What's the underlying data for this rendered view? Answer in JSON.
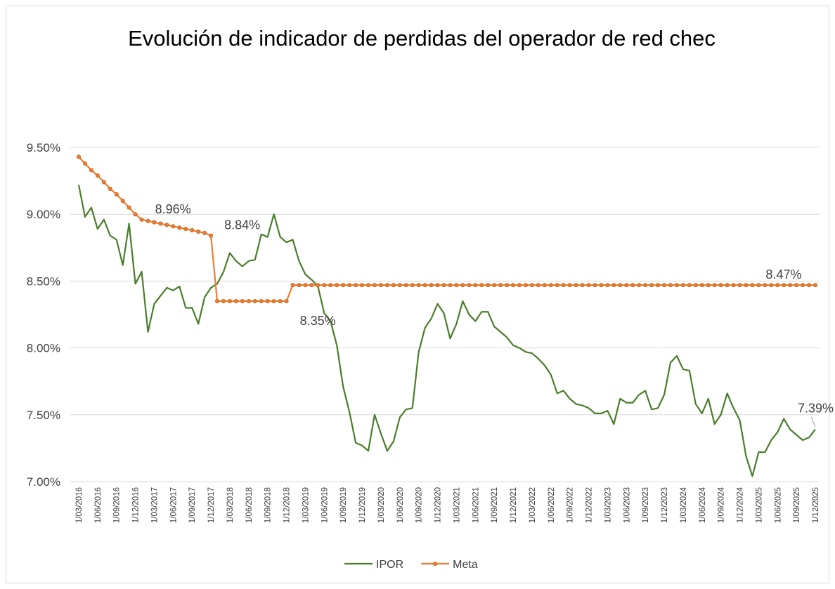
{
  "chart_data": {
    "type": "line",
    "title": "Evolución de indicador de perdidas del operador de red chec",
    "categories": [
      "1/03/2016",
      null,
      null,
      "1/06/2016",
      null,
      null,
      "1/09/2016",
      null,
      null,
      "1/12/2016",
      null,
      null,
      "1/03/2017",
      null,
      null,
      "1/06/2017",
      null,
      null,
      "1/09/2017",
      null,
      null,
      "1/12/2017",
      null,
      null,
      "1/03/2018",
      null,
      null,
      "1/06/2018",
      null,
      null,
      "1/09/2018",
      null,
      null,
      "1/12/2018",
      null,
      null,
      "1/03/2019",
      null,
      null,
      "1/06/2019",
      null,
      null,
      "1/09/2019",
      null,
      null,
      "1/12/2019",
      null,
      null,
      "1/03/2020",
      null,
      null,
      "1/06/2020",
      null,
      null,
      "1/09/2020",
      null,
      null,
      "1/12/2020",
      null,
      null,
      "1/03/2021",
      null,
      null,
      "1/06/2021",
      null,
      null,
      "1/09/2021",
      null,
      null,
      "1/12/2021",
      null,
      null,
      "1/03/2022",
      null,
      null,
      "1/06/2022",
      null,
      null,
      "1/09/2022",
      null,
      null,
      "1/12/2022",
      null,
      null,
      "1/03/2023",
      null,
      null,
      "1/06/2023",
      null,
      null,
      "1/09/2023",
      null,
      null,
      "1/12/2023",
      null,
      null,
      "1/03/2024",
      null,
      null,
      "1/06/2024",
      null,
      null,
      "1/09/2024",
      null,
      null,
      "1/12/2024",
      null,
      null,
      "1/03/2025",
      null,
      null,
      "1/06/2025",
      null,
      null,
      "1/09/2025",
      null,
      null,
      "1/12/2025"
    ],
    "series": [
      {
        "name": "IPOR",
        "color": "#4a7d2a",
        "markers": false,
        "values": [
          9.22,
          8.98,
          9.05,
          8.89,
          8.96,
          8.84,
          8.81,
          8.62,
          8.93,
          8.48,
          8.57,
          8.12,
          8.33,
          8.39,
          8.45,
          8.43,
          8.46,
          8.3,
          8.3,
          8.18,
          8.38,
          8.45,
          8.48,
          8.57,
          8.71,
          8.65,
          8.61,
          8.65,
          8.66,
          8.85,
          8.83,
          9.0,
          8.83,
          8.79,
          8.81,
          8.65,
          8.55,
          8.51,
          8.46,
          8.26,
          8.2,
          8.02,
          7.71,
          7.52,
          7.29,
          7.27,
          7.23,
          7.5,
          7.36,
          7.23,
          7.3,
          7.48,
          7.54,
          7.55,
          7.97,
          8.15,
          8.22,
          8.33,
          8.26,
          8.07,
          8.18,
          8.35,
          8.25,
          8.2,
          8.27,
          8.27,
          8.16,
          8.12,
          8.08,
          8.02,
          8.0,
          7.97,
          7.96,
          7.92,
          7.87,
          7.8,
          7.66,
          7.68,
          7.62,
          7.58,
          7.57,
          7.55,
          7.51,
          7.51,
          7.53,
          7.43,
          7.62,
          7.59,
          7.59,
          7.65,
          7.68,
          7.54,
          7.55,
          7.65,
          7.89,
          7.94,
          7.84,
          7.83,
          7.58,
          7.51,
          7.62,
          7.43,
          7.5,
          7.66,
          7.55,
          7.46,
          7.19,
          7.04,
          7.22,
          7.22,
          7.31,
          7.37,
          7.47,
          7.39,
          7.35,
          7.31,
          7.33,
          7.39
        ],
        "value_labels": [
          null,
          null,
          null,
          null,
          null,
          null,
          null,
          null,
          null,
          null,
          null,
          null,
          null,
          null,
          null,
          null,
          null,
          null,
          null,
          null,
          null,
          null,
          null,
          null,
          null,
          null,
          null,
          null,
          null,
          null,
          null,
          null,
          null,
          null,
          null,
          null,
          null,
          null,
          null,
          null,
          null,
          null,
          null,
          null,
          null,
          null,
          null,
          null,
          null,
          null,
          null,
          null,
          null,
          null,
          null,
          null,
          null,
          null,
          null,
          null,
          null,
          null,
          null,
          null,
          null,
          null,
          null,
          null,
          null,
          null,
          null,
          null,
          null,
          null,
          null,
          null,
          null,
          null,
          null,
          null,
          null,
          null,
          null,
          null,
          null,
          null,
          null,
          null,
          null,
          null,
          null,
          null,
          null,
          null,
          null,
          null,
          null,
          null,
          null,
          null,
          null,
          null,
          null,
          null,
          null,
          null,
          null,
          null,
          null,
          null,
          null,
          null,
          null,
          null,
          null,
          null,
          null,
          "7.39%"
        ]
      },
      {
        "name": "Meta",
        "color": "#ed7d31",
        "markers": true,
        "values": [
          9.43,
          9.38,
          9.33,
          9.29,
          9.24,
          9.19,
          9.15,
          9.1,
          9.05,
          9.0,
          8.96,
          8.95,
          8.94,
          8.93,
          8.92,
          8.91,
          8.9,
          8.89,
          8.88,
          8.87,
          8.86,
          8.84,
          8.35,
          8.35,
          8.35,
          8.35,
          8.35,
          8.35,
          8.35,
          8.35,
          8.35,
          8.35,
          8.35,
          8.35,
          8.47,
          8.47,
          8.47,
          8.47,
          8.47,
          8.47,
          8.47,
          8.47,
          8.47,
          8.47,
          8.47,
          8.47,
          8.47,
          8.47,
          8.47,
          8.47,
          8.47,
          8.47,
          8.47,
          8.47,
          8.47,
          8.47,
          8.47,
          8.47,
          8.47,
          8.47,
          8.47,
          8.47,
          8.47,
          8.47,
          8.47,
          8.47,
          8.47,
          8.47,
          8.47,
          8.47,
          8.47,
          8.47,
          8.47,
          8.47,
          8.47,
          8.47,
          8.47,
          8.47,
          8.47,
          8.47,
          8.47,
          8.47,
          8.47,
          8.47,
          8.47,
          8.47,
          8.47,
          8.47,
          8.47,
          8.47,
          8.47,
          8.47,
          8.47,
          8.47,
          8.47,
          8.47,
          8.47,
          8.47,
          8.47,
          8.47,
          8.47,
          8.47,
          8.47,
          8.47,
          8.47,
          8.47,
          8.47,
          8.47,
          8.47,
          8.47,
          8.47,
          8.47,
          8.47,
          8.47,
          8.47,
          8.47,
          8.47,
          8.47
        ],
        "value_labels": [
          null,
          null,
          null,
          null,
          null,
          null,
          null,
          null,
          null,
          null,
          "8.96%",
          null,
          null,
          null,
          null,
          null,
          null,
          null,
          null,
          null,
          null,
          "8.84%",
          null,
          null,
          null,
          null,
          null,
          null,
          null,
          null,
          null,
          null,
          null,
          "8.35%",
          null,
          null,
          null,
          null,
          null,
          null,
          null,
          null,
          null,
          null,
          null,
          null,
          null,
          null,
          null,
          null,
          null,
          null,
          null,
          null,
          null,
          null,
          null,
          null,
          null,
          null,
          null,
          null,
          null,
          null,
          null,
          null,
          null,
          null,
          null,
          null,
          null,
          null,
          null,
          null,
          null,
          null,
          null,
          null,
          null,
          null,
          null,
          null,
          null,
          null,
          null,
          null,
          null,
          null,
          null,
          null,
          null,
          null,
          null,
          null,
          null,
          null,
          null,
          null,
          null,
          null,
          null,
          null,
          null,
          null,
          null,
          null,
          null,
          "8.47%",
          null,
          null,
          null,
          null,
          null,
          null,
          null,
          null,
          null,
          null
        ]
      }
    ],
    "ylim": [
      7.0,
      9.5
    ],
    "yticks": [
      {
        "value": 7.0,
        "label": "7.00%"
      },
      {
        "value": 7.5,
        "label": "7.50%"
      },
      {
        "value": 8.0,
        "label": "8.00%"
      },
      {
        "value": 8.5,
        "label": "8.50%"
      },
      {
        "value": 9.0,
        "label": "9.00%"
      },
      {
        "value": 9.5,
        "label": "9.50%"
      }
    ],
    "grid": true,
    "legend": "bottom"
  }
}
